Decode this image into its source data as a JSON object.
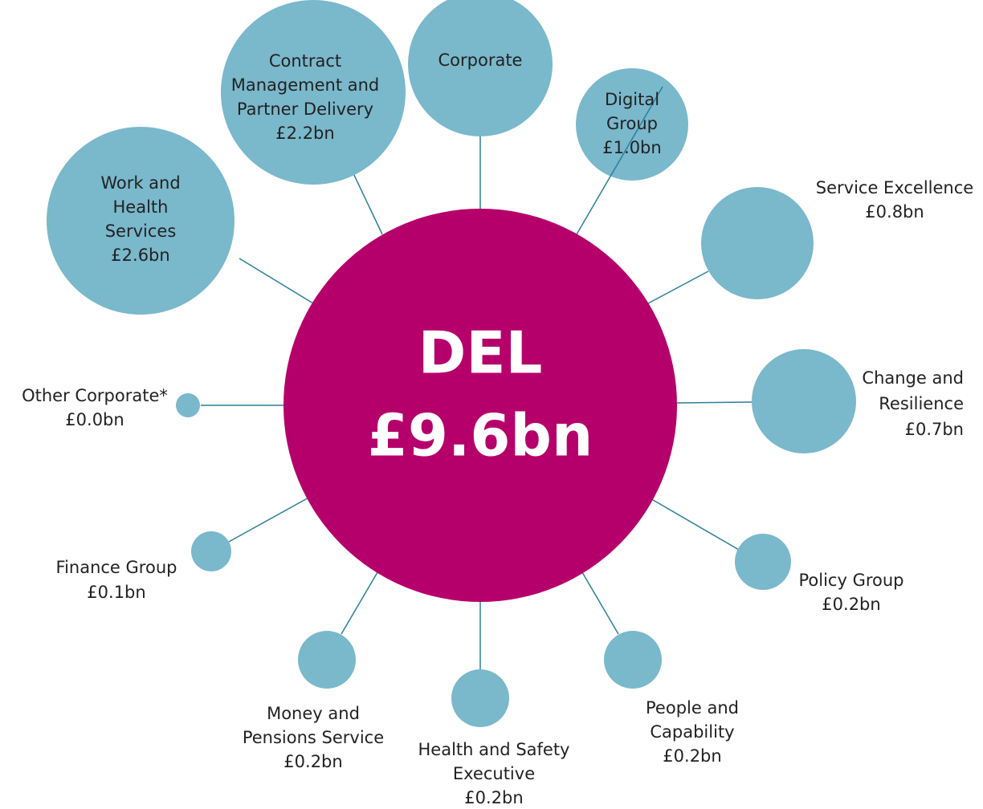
{
  "center": {
    "title": "DEL",
    "value": "£9.6bn"
  },
  "nodes": [
    {
      "label": [
        "Work and",
        "Health",
        "Services"
      ],
      "value": "£2.6bn"
    },
    {
      "label": [
        "Contract",
        "Management and",
        "Partner Delivery"
      ],
      "value": "£2.2bn"
    },
    {
      "label": [
        "Corporate"
      ]
    },
    {
      "label": [
        "Digital",
        "Group"
      ],
      "value": "£1.0bn"
    },
    {
      "label": [
        "Service Excellence"
      ],
      "value": "£0.8bn"
    },
    {
      "label": [
        "Change and",
        "Resilience"
      ],
      "value": "£0.7bn"
    },
    {
      "label": [
        "Policy Group"
      ],
      "value": "£0.2bn"
    },
    {
      "label": [
        "People and",
        "Capability"
      ],
      "value": "£0.2bn"
    },
    {
      "label": [
        "Health and Safety",
        "Executive"
      ],
      "value": "£0.2bn"
    },
    {
      "label": [
        "Money and",
        "Pensions Service"
      ],
      "value": "£0.2bn"
    },
    {
      "label": [
        "Finance Group"
      ],
      "value": "£0.1bn"
    },
    {
      "label": [
        "Other Corporate*"
      ],
      "value": "£0.0bn"
    }
  ]
}
